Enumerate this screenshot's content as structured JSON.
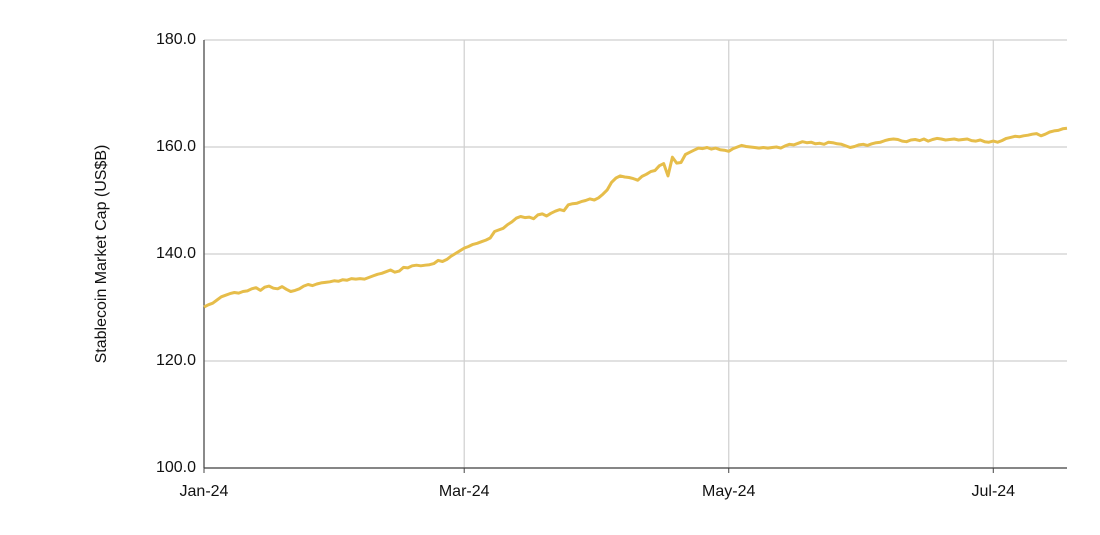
{
  "chart_data": {
    "type": "line",
    "y_label": "Stablecoin Market Cap (US$B)",
    "categories": [
      "Jan-24",
      null,
      null,
      null,
      null,
      null,
      null,
      null,
      null,
      null,
      null,
      null,
      null,
      null,
      null,
      null,
      null,
      null,
      null,
      null,
      null,
      null,
      null,
      null,
      null,
      null,
      null,
      null,
      null,
      null,
      null,
      null,
      null,
      null,
      null,
      null,
      null,
      null,
      null,
      null,
      null,
      null,
      null,
      null,
      null,
      null,
      null,
      null,
      null,
      null,
      null,
      null,
      null,
      null,
      null,
      null,
      null,
      null,
      null,
      null,
      "Mar-24",
      null,
      null,
      null,
      null,
      null,
      null,
      null,
      null,
      null,
      null,
      null,
      null,
      null,
      null,
      null,
      null,
      null,
      null,
      null,
      null,
      null,
      null,
      null,
      null,
      null,
      null,
      null,
      null,
      null,
      null,
      null,
      null,
      null,
      null,
      null,
      null,
      null,
      null,
      null,
      null,
      null,
      null,
      null,
      null,
      null,
      null,
      null,
      null,
      null,
      null,
      null,
      null,
      null,
      null,
      null,
      null,
      null,
      null,
      null,
      null,
      "May-24",
      null,
      null,
      null,
      null,
      null,
      null,
      null,
      null,
      null,
      null,
      null,
      null,
      null,
      null,
      null,
      null,
      null,
      null,
      null,
      null,
      null,
      null,
      null,
      null,
      null,
      null,
      null,
      null,
      null,
      null,
      null,
      null,
      null,
      null,
      null,
      null,
      null,
      null,
      null,
      null,
      null,
      null,
      null,
      null,
      null,
      null,
      null,
      null,
      null,
      null,
      null,
      null,
      null,
      null,
      null,
      null,
      null,
      null,
      null,
      null,
      "Jul-24",
      null,
      null,
      null,
      null,
      null,
      null,
      null,
      null,
      null,
      null,
      null,
      null,
      null,
      null,
      null,
      null,
      null
    ],
    "series": [
      {
        "color": "#e6bd4a",
        "values": [
          130.1,
          130.5,
          130.8,
          131.4,
          132.0,
          132.3,
          132.6,
          132.8,
          132.7,
          133.0,
          133.1,
          133.5,
          133.7,
          133.2,
          133.8,
          134.0,
          133.6,
          133.5,
          133.9,
          133.4,
          133.0,
          133.2,
          133.5,
          134.0,
          134.3,
          134.1,
          134.4,
          134.6,
          134.7,
          134.8,
          135.0,
          134.9,
          135.2,
          135.1,
          135.4,
          135.3,
          135.4,
          135.3,
          135.6,
          135.9,
          136.2,
          136.4,
          136.7,
          137.0,
          136.6,
          136.8,
          137.5,
          137.4,
          137.8,
          137.9,
          137.8,
          137.9,
          138.0,
          138.2,
          138.8,
          138.6,
          139.0,
          139.6,
          140.1,
          140.6,
          141.1,
          141.4,
          141.8,
          142.0,
          142.3,
          142.6,
          143.0,
          144.2,
          144.5,
          144.8,
          145.5,
          146.0,
          146.7,
          147.0,
          146.8,
          146.9,
          146.6,
          147.3,
          147.5,
          147.1,
          147.6,
          148.0,
          148.3,
          148.1,
          149.2,
          149.4,
          149.5,
          149.8,
          150.0,
          150.3,
          150.1,
          150.5,
          151.2,
          152.0,
          153.4,
          154.2,
          154.6,
          154.4,
          154.3,
          154.1,
          153.8,
          154.5,
          154.9,
          155.4,
          155.6,
          156.5,
          156.9,
          154.6,
          158.1,
          157.0,
          157.1,
          158.6,
          159.0,
          159.4,
          159.8,
          159.7,
          159.9,
          159.6,
          159.8,
          159.5,
          159.4,
          159.2,
          159.7,
          160.0,
          160.3,
          160.1,
          160.0,
          159.9,
          159.8,
          159.9,
          159.8,
          159.9,
          160.0,
          159.8,
          160.2,
          160.5,
          160.4,
          160.7,
          161.0,
          160.8,
          160.9,
          160.6,
          160.7,
          160.5,
          160.9,
          160.8,
          160.6,
          160.5,
          160.2,
          159.9,
          160.1,
          160.4,
          160.5,
          160.3,
          160.6,
          160.8,
          160.9,
          161.2,
          161.4,
          161.5,
          161.4,
          161.1,
          161.0,
          161.3,
          161.4,
          161.2,
          161.5,
          161.1,
          161.4,
          161.6,
          161.5,
          161.3,
          161.4,
          161.5,
          161.3,
          161.4,
          161.5,
          161.2,
          161.1,
          161.3,
          161.0,
          160.9,
          161.1,
          160.9,
          161.2,
          161.6,
          161.8,
          162.0,
          161.9,
          162.1,
          162.2,
          162.4,
          162.5,
          162.1,
          162.4,
          162.8,
          163.0,
          163.1,
          163.4,
          163.5
        ]
      }
    ],
    "ylim": [
      100,
      180
    ],
    "yticks": [
      {
        "value": 100,
        "label": "100.0"
      },
      {
        "value": 120,
        "label": "120.0"
      },
      {
        "value": 140,
        "label": "140.0"
      },
      {
        "value": 160,
        "label": "160.0"
      },
      {
        "value": 180,
        "label": "180.0"
      }
    ],
    "grid": true
  }
}
